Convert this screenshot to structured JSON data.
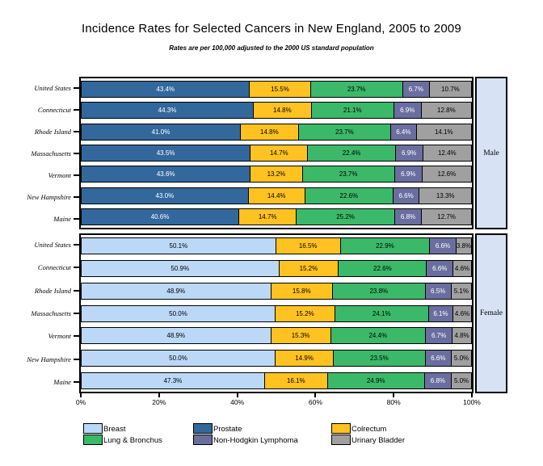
{
  "title": "Incidence Rates for Selected Cancers in New England, 2005 to 2009",
  "subtitle": "Rates are per 100,000 adjusted to the 2000 US standard population",
  "colors": {
    "breast": "#BBD9F7",
    "prostate": "#33689D",
    "colrectum": "#FFC220",
    "lung_bronchus": "#3BB969",
    "non_hodgkin_lymphoma": "#6A6E9F",
    "urinary_bladder": "#A0A0A0",
    "side_band": "#D7E3F4",
    "border": "#000000"
  },
  "chart_data": {
    "type": "bar",
    "orientation": "horizontal-stacked",
    "title": "Incidence Rates for Selected Cancers in New England, 2005 to 2009",
    "subtitle": "Rates are per 100,000 adjusted to the 2000 US standard population",
    "categories": [
      "United States",
      "Connecticut",
      "Rhode Island",
      "Massachusetts",
      "Vermont",
      "New Hampshire",
      "Maine"
    ],
    "x_ticks": [
      "0%",
      "20%",
      "40%",
      "60%",
      "80%",
      "100%"
    ],
    "xlim": [
      0,
      100
    ],
    "panels": [
      {
        "label": "Male",
        "series": [
          {
            "name": "Prostate",
            "color": "#33689D",
            "text_color": "#FFFFFF"
          },
          {
            "name": "Colrectum",
            "color": "#FFC220",
            "text_color": "#000000"
          },
          {
            "name": "Lung & Bronchus",
            "color": "#3BB969",
            "text_color": "#000000"
          },
          {
            "name": "Non-Hodgkin Lymphoma",
            "color": "#6A6E9F",
            "text_color": "#FFFFFF"
          },
          {
            "name": "Urinary Bladder",
            "color": "#A0A0A0",
            "text_color": "#000000"
          }
        ],
        "rows": [
          {
            "category": "United States",
            "values": [
              43.4,
              15.5,
              23.7,
              6.7,
              10.7
            ]
          },
          {
            "category": "Connecticut",
            "values": [
              44.3,
              14.8,
              21.1,
              6.9,
              12.8
            ]
          },
          {
            "category": "Rhode Island",
            "values": [
              41.0,
              14.8,
              23.7,
              6.4,
              14.1
            ]
          },
          {
            "category": "Massachusetts",
            "values": [
              43.5,
              14.7,
              22.4,
              6.9,
              12.4
            ]
          },
          {
            "category": "Vermont",
            "values": [
              43.6,
              13.2,
              23.7,
              6.9,
              12.6
            ]
          },
          {
            "category": "New Hampshire",
            "values": [
              43.0,
              14.4,
              22.6,
              6.6,
              13.3
            ]
          },
          {
            "category": "Maine",
            "values": [
              40.6,
              14.7,
              25.2,
              6.8,
              12.7
            ]
          }
        ]
      },
      {
        "label": "Female",
        "series": [
          {
            "name": "Breast",
            "color": "#BBD9F7",
            "text_color": "#000000"
          },
          {
            "name": "Colrectum",
            "color": "#FFC220",
            "text_color": "#000000"
          },
          {
            "name": "Lung & Bronchus",
            "color": "#3BB969",
            "text_color": "#000000"
          },
          {
            "name": "Non-Hodgkin Lymphoma",
            "color": "#6A6E9F",
            "text_color": "#FFFFFF"
          },
          {
            "name": "Urinary Bladder",
            "color": "#A0A0A0",
            "text_color": "#000000"
          }
        ],
        "rows": [
          {
            "category": "United States",
            "values": [
              50.1,
              16.5,
              22.9,
              6.6,
              3.8
            ]
          },
          {
            "category": "Connecticut",
            "values": [
              50.9,
              15.2,
              22.6,
              6.6,
              4.6
            ]
          },
          {
            "category": "Rhode Island",
            "values": [
              48.9,
              15.8,
              23.8,
              6.5,
              5.1
            ]
          },
          {
            "category": "Massachusetts",
            "values": [
              50.0,
              15.2,
              24.1,
              6.1,
              4.6
            ]
          },
          {
            "category": "Vermont",
            "values": [
              48.9,
              15.3,
              24.4,
              6.7,
              4.8
            ]
          },
          {
            "category": "New Hampshire",
            "values": [
              50.0,
              14.9,
              23.5,
              6.6,
              5.0
            ]
          },
          {
            "category": "Maine",
            "values": [
              47.3,
              16.1,
              24.9,
              6.8,
              5.0
            ]
          }
        ]
      }
    ],
    "legend_columns": [
      [
        {
          "label": "Breast",
          "color": "#BBD9F7"
        },
        {
          "label": "Lung & Bronchus",
          "color": "#3BB969"
        }
      ],
      [
        {
          "label": "Prostate",
          "color": "#33689D"
        },
        {
          "label": "Non-Hodgkin Lymphoma",
          "color": "#6A6E9F"
        }
      ],
      [
        {
          "label": "Colrectum",
          "color": "#FFC220"
        },
        {
          "label": "Urinary Bladder",
          "color": "#A0A0A0"
        }
      ]
    ],
    "legend_position": "bottom",
    "grid": false
  }
}
